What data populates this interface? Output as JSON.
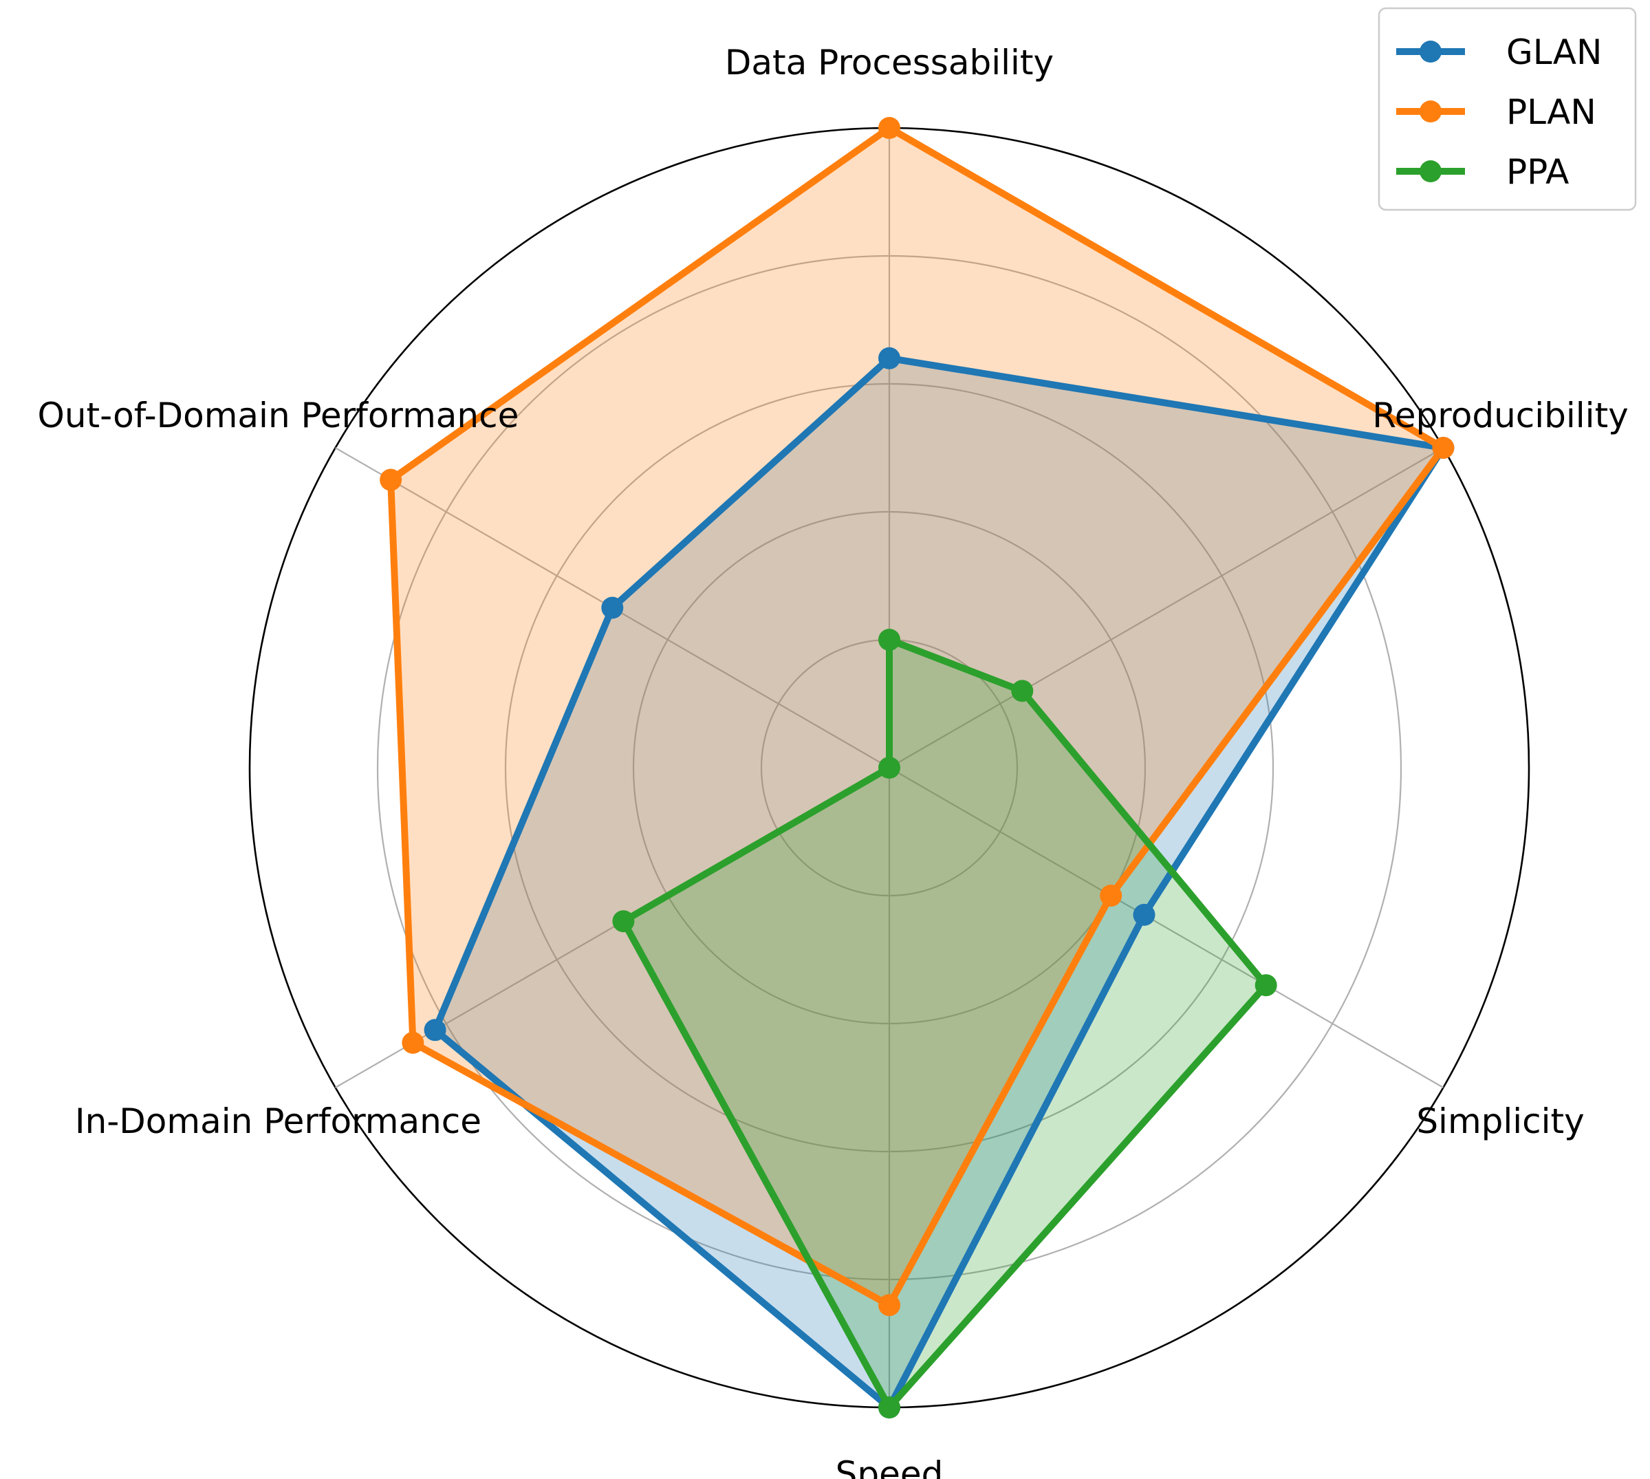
{
  "chart_data": {
    "type": "radar",
    "title": "",
    "categories": [
      "Data Processability",
      "Reproducibility",
      "Simplicity",
      "Speed",
      "In-Domain Performance",
      "Out-of-Domain Performance"
    ],
    "series": [
      {
        "name": "GLAN",
        "color": "#1f77b4",
        "values": [
          3.2,
          5,
          2.3,
          5,
          4.1,
          2.5
        ]
      },
      {
        "name": "PLAN",
        "color": "#ff7f0e",
        "values": [
          5,
          5,
          2,
          4.2,
          4.3,
          4.5
        ]
      },
      {
        "name": "PPA",
        "color": "#2ca02c",
        "values": [
          1,
          1.2,
          3.4,
          5,
          2.4,
          0
        ]
      }
    ],
    "rlim": [
      0,
      5
    ],
    "radial_gridlines": [
      1,
      2,
      3,
      4,
      5
    ],
    "radial_tick_labels_shown": false,
    "grid": true,
    "legend_position": "top-right"
  }
}
